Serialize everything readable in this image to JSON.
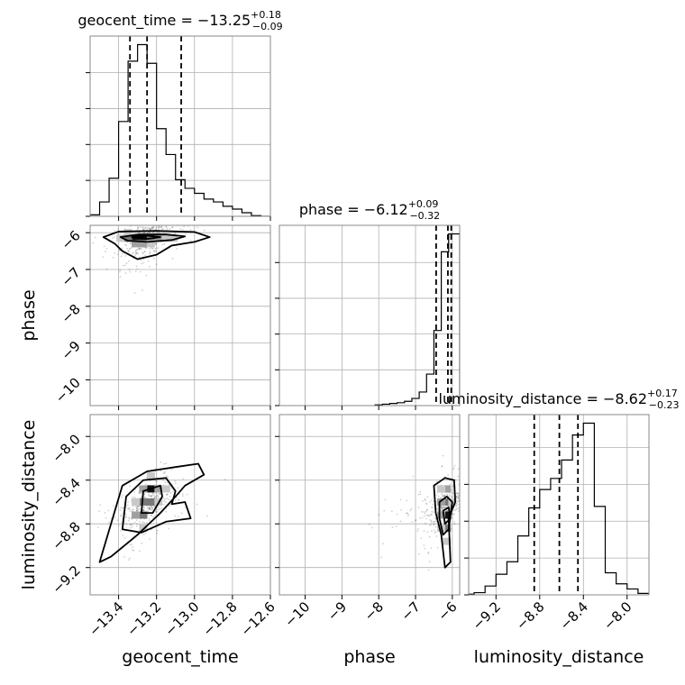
{
  "chart_data": {
    "type": "corner",
    "parameters": [
      "geocent_time",
      "phase",
      "luminosity_distance"
    ],
    "titles": [
      {
        "param": "geocent_time",
        "label": "geocent_time = ",
        "median": "−13.25",
        "plus": "+0.18",
        "minus": "−0.09"
      },
      {
        "param": "phase",
        "label": "phase = ",
        "median": "−6.12",
        "plus": "+0.09",
        "minus": "−0.32"
      },
      {
        "param": "luminosity_distance",
        "label": "luminosity_distance = ",
        "median": "−8.62",
        "plus": "+0.17",
        "minus": "−0.23"
      }
    ],
    "ranges": {
      "geocent_time": [
        -13.55,
        -12.6
      ],
      "phase": [
        -10.7,
        -5.8
      ],
      "luminosity_distance": [
        -9.45,
        -7.8
      ]
    },
    "ticks": {
      "geocent_time": [
        -13.4,
        -13.2,
        -13.0,
        -12.8,
        -12.6
      ],
      "phase": [
        -10,
        -9,
        -8,
        -7,
        -6
      ],
      "luminosity_distance": [
        -9.2,
        -8.8,
        -8.4,
        -8.0
      ]
    },
    "tick_labels": {
      "geocent_time": [
        "−13.4",
        "−13.2",
        "−13.0",
        "−12.8",
        "−12.6"
      ],
      "phase": [
        "−10",
        "−9",
        "−8",
        "−7",
        "−6"
      ],
      "luminosity_distance": [
        "−9.2",
        "−8.8",
        "−8.4",
        "−8.0"
      ]
    },
    "quantiles": {
      "geocent_time": [
        -13.34,
        -13.25,
        -13.07
      ],
      "phase": [
        -6.44,
        -6.12,
        -6.03
      ],
      "luminosity_distance": [
        -8.85,
        -8.62,
        -8.45
      ]
    },
    "histograms": {
      "geocent_time": {
        "edges": [
          -13.55,
          -13.5,
          -13.45,
          -13.4,
          -13.35,
          -13.3,
          -13.25,
          -13.2,
          -13.15,
          -13.1,
          -13.05,
          -13.0,
          -12.95,
          -12.9,
          -12.85,
          -12.8,
          -12.75,
          -12.7,
          -12.65,
          -12.6
        ],
        "counts": [
          2,
          20,
          53,
          132,
          216,
          239,
          213,
          122,
          86,
          51,
          39,
          32,
          24,
          20,
          14,
          10,
          5,
          1,
          0
        ]
      },
      "phase": {
        "edges": [
          -8.1,
          -7.9,
          -7.7,
          -7.5,
          -7.3,
          -7.1,
          -6.9,
          -6.7,
          -6.5,
          -6.3,
          -6.1,
          -5.9,
          -5.8
        ],
        "counts": [
          1,
          2,
          3,
          4,
          6,
          10,
          19,
          44,
          105,
          215,
          240,
          240
        ]
      },
      "luminosity_distance": {
        "edges": [
          -9.45,
          -9.4,
          -9.3,
          -9.2,
          -9.1,
          -9.0,
          -8.9,
          -8.8,
          -8.7,
          -8.6,
          -8.5,
          -8.4,
          -8.3,
          -8.2,
          -8.1,
          -8.0,
          -7.9,
          -7.8
        ],
        "counts": [
          1,
          3,
          12,
          28,
          45,
          80,
          118,
          143,
          158,
          183,
          217,
          233,
          120,
          30,
          15,
          8,
          2
        ]
      }
    },
    "bins2d": {
      "geocent_time-phase": [
        {
          "x": -13.31,
          "y": -6.15,
          "level": 5
        },
        {
          "x": -13.27,
          "y": -6.15,
          "level": 5
        },
        {
          "x": -13.35,
          "y": -6.15,
          "level": 3
        },
        {
          "x": -13.23,
          "y": -6.15,
          "level": 3
        },
        {
          "x": -13.31,
          "y": -6.3,
          "level": 2
        },
        {
          "x": -13.27,
          "y": -6.3,
          "level": 2
        },
        {
          "x": -13.19,
          "y": -6.15,
          "level": 2
        },
        {
          "x": -13.39,
          "y": -6.15,
          "level": 1
        },
        {
          "x": -13.35,
          "y": -6.0,
          "level": 1
        },
        {
          "x": -13.23,
          "y": -6.3,
          "level": 1
        },
        {
          "x": -13.15,
          "y": -6.15,
          "level": 1
        },
        {
          "x": -13.11,
          "y": -6.15,
          "level": 1
        }
      ],
      "geocent_time-luminosity_distance": [
        {
          "x": -13.23,
          "y": -8.48,
          "level": 5
        },
        {
          "x": -13.27,
          "y": -8.6,
          "level": 3
        },
        {
          "x": -13.27,
          "y": -8.72,
          "level": 3
        },
        {
          "x": -13.23,
          "y": -8.6,
          "level": 3
        },
        {
          "x": -13.19,
          "y": -8.48,
          "level": 2
        },
        {
          "x": -13.31,
          "y": -8.72,
          "level": 2
        },
        {
          "x": -13.27,
          "y": -8.48,
          "level": 2
        },
        {
          "x": -13.19,
          "y": -8.6,
          "level": 1
        },
        {
          "x": -13.31,
          "y": -8.6,
          "level": 1
        },
        {
          "x": -13.27,
          "y": -8.84,
          "level": 1
        },
        {
          "x": -13.23,
          "y": -8.36,
          "level": 1
        },
        {
          "x": -13.15,
          "y": -8.48,
          "level": 1
        }
      ],
      "phase-luminosity_distance": [
        {
          "x": -6.15,
          "y": -8.72,
          "level": 5
        },
        {
          "x": -6.15,
          "y": -8.6,
          "level": 3
        },
        {
          "x": -6.15,
          "y": -8.84,
          "level": 3
        },
        {
          "x": -6.3,
          "y": -8.6,
          "level": 2
        },
        {
          "x": -6.3,
          "y": -8.72,
          "level": 2
        },
        {
          "x": -6.15,
          "y": -8.48,
          "level": 2
        },
        {
          "x": -6.3,
          "y": -8.48,
          "level": 1
        },
        {
          "x": -6.0,
          "y": -8.6,
          "level": 1
        },
        {
          "x": -6.3,
          "y": -8.84,
          "level": 1
        },
        {
          "x": -6.15,
          "y": -8.96,
          "level": 1
        }
      ]
    },
    "contours": {
      "geocent_time-phase": [
        [
          [
            -13.48,
            -6.12
          ],
          [
            -13.4,
            -5.97
          ],
          [
            -13.2,
            -5.95
          ],
          [
            -13.0,
            -5.98
          ],
          [
            -12.92,
            -6.12
          ],
          [
            -13.0,
            -6.25
          ],
          [
            -13.12,
            -6.35
          ],
          [
            -13.2,
            -6.6
          ],
          [
            -13.3,
            -6.72
          ],
          [
            -13.38,
            -6.5
          ],
          [
            -13.42,
            -6.3
          ]
        ],
        [
          [
            -13.39,
            -6.12
          ],
          [
            -13.3,
            -6.05
          ],
          [
            -13.15,
            -6.05
          ],
          [
            -13.05,
            -6.1
          ],
          [
            -13.12,
            -6.2
          ],
          [
            -13.25,
            -6.25
          ],
          [
            -13.35,
            -6.22
          ]
        ],
        [
          [
            -13.33,
            -6.12
          ],
          [
            -13.25,
            -6.08
          ],
          [
            -13.18,
            -6.12
          ],
          [
            -13.25,
            -6.17
          ]
        ]
      ],
      "geocent_time-luminosity_distance": [
        [
          [
            -13.5,
            -9.15
          ],
          [
            -13.44,
            -8.8
          ],
          [
            -13.38,
            -8.45
          ],
          [
            -13.25,
            -8.32
          ],
          [
            -13.1,
            -8.28
          ],
          [
            -12.98,
            -8.25
          ],
          [
            -12.95,
            -8.35
          ],
          [
            -13.05,
            -8.45
          ],
          [
            -13.1,
            -8.55
          ],
          [
            -13.18,
            -8.7
          ],
          [
            -13.3,
            -8.9
          ],
          [
            -13.44,
            -9.1
          ]
        ],
        [
          [
            -13.38,
            -8.85
          ],
          [
            -13.36,
            -8.55
          ],
          [
            -13.27,
            -8.4
          ],
          [
            -13.15,
            -8.38
          ],
          [
            -13.1,
            -8.5
          ],
          [
            -13.12,
            -8.62
          ],
          [
            -13.05,
            -8.6
          ],
          [
            -13.02,
            -8.75
          ],
          [
            -13.15,
            -8.78
          ],
          [
            -13.28,
            -8.88
          ]
        ],
        [
          [
            -13.28,
            -8.7
          ],
          [
            -13.27,
            -8.5
          ],
          [
            -13.18,
            -8.45
          ],
          [
            -13.17,
            -8.55
          ],
          [
            -13.22,
            -8.7
          ]
        ]
      ],
      "phase-luminosity_distance": [
        [
          [
            -6.5,
            -8.45
          ],
          [
            -6.2,
            -8.38
          ],
          [
            -5.95,
            -8.4
          ],
          [
            -5.92,
            -8.6
          ],
          [
            -6.1,
            -8.75
          ],
          [
            -6.05,
            -9.15
          ],
          [
            -6.2,
            -9.2
          ],
          [
            -6.3,
            -8.9
          ],
          [
            -6.45,
            -8.7
          ]
        ],
        [
          [
            -6.35,
            -8.6
          ],
          [
            -6.15,
            -8.55
          ],
          [
            -6.0,
            -8.6
          ],
          [
            -6.1,
            -8.85
          ],
          [
            -6.25,
            -8.9
          ],
          [
            -6.35,
            -8.75
          ]
        ],
        [
          [
            -6.25,
            -8.68
          ],
          [
            -6.1,
            -8.65
          ],
          [
            -6.05,
            -8.75
          ],
          [
            -6.2,
            -8.8
          ]
        ]
      ]
    },
    "grid": true
  }
}
